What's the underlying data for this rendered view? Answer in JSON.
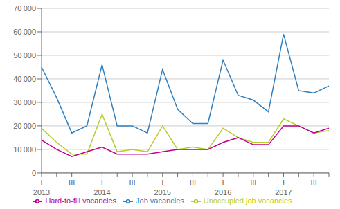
{
  "chart_data": {
    "type": "line",
    "categories": [
      "I",
      null,
      "III",
      null,
      "I",
      null,
      "III",
      null,
      "I",
      null,
      "III",
      null,
      "I",
      null,
      "III",
      null,
      "I",
      null,
      "III",
      null
    ],
    "annotations": [
      {
        "text": "2013",
        "x": 0
      },
      {
        "text": "2014",
        "x": 4
      },
      {
        "text": "2015",
        "x": 8
      },
      {
        "text": "2016",
        "x": 12
      },
      {
        "text": "2017",
        "x": 16
      }
    ],
    "series": [
      {
        "name": "Job vacancies",
        "color": "#2f7fbf",
        "values": [
          45000,
          32000,
          17000,
          20000,
          46000,
          20000,
          20000,
          17000,
          44000,
          27000,
          21000,
          21000,
          48000,
          33000,
          31000,
          26000,
          59000,
          35000,
          34000,
          37000
        ]
      },
      {
        "name": "Unoccupied job vacancies",
        "color": "#b8cc2c",
        "values": [
          19000,
          13000,
          8000,
          8000,
          25000,
          9000,
          10000,
          9000,
          20000,
          10000,
          11000,
          10000,
          19000,
          15000,
          13000,
          13000,
          23000,
          20000,
          17000,
          18000
        ]
      },
      {
        "name": "Hard-to-fill vacancies",
        "color": "#c0008c",
        "values": [
          14000,
          10000,
          7000,
          9000,
          11000,
          8000,
          8000,
          8000,
          9000,
          10000,
          10000,
          10000,
          13000,
          15000,
          12000,
          12000,
          20000,
          20000,
          17000,
          19000
        ]
      }
    ],
    "ylim": [
      0,
      70000
    ],
    "yticks": [
      0,
      {
        "value": 10000,
        "label": "10 000"
      },
      {
        "value": 20000,
        "label": "20 000"
      },
      {
        "value": 30000,
        "label": "30 000"
      },
      {
        "value": 40000,
        "label": "40 000"
      },
      {
        "value": 50000,
        "label": "50 000"
      },
      {
        "value": 60000,
        "label": "60 000"
      },
      {
        "value": 70000,
        "label": "70 000"
      }
    ],
    "grid": true,
    "legend": "bottom"
  }
}
